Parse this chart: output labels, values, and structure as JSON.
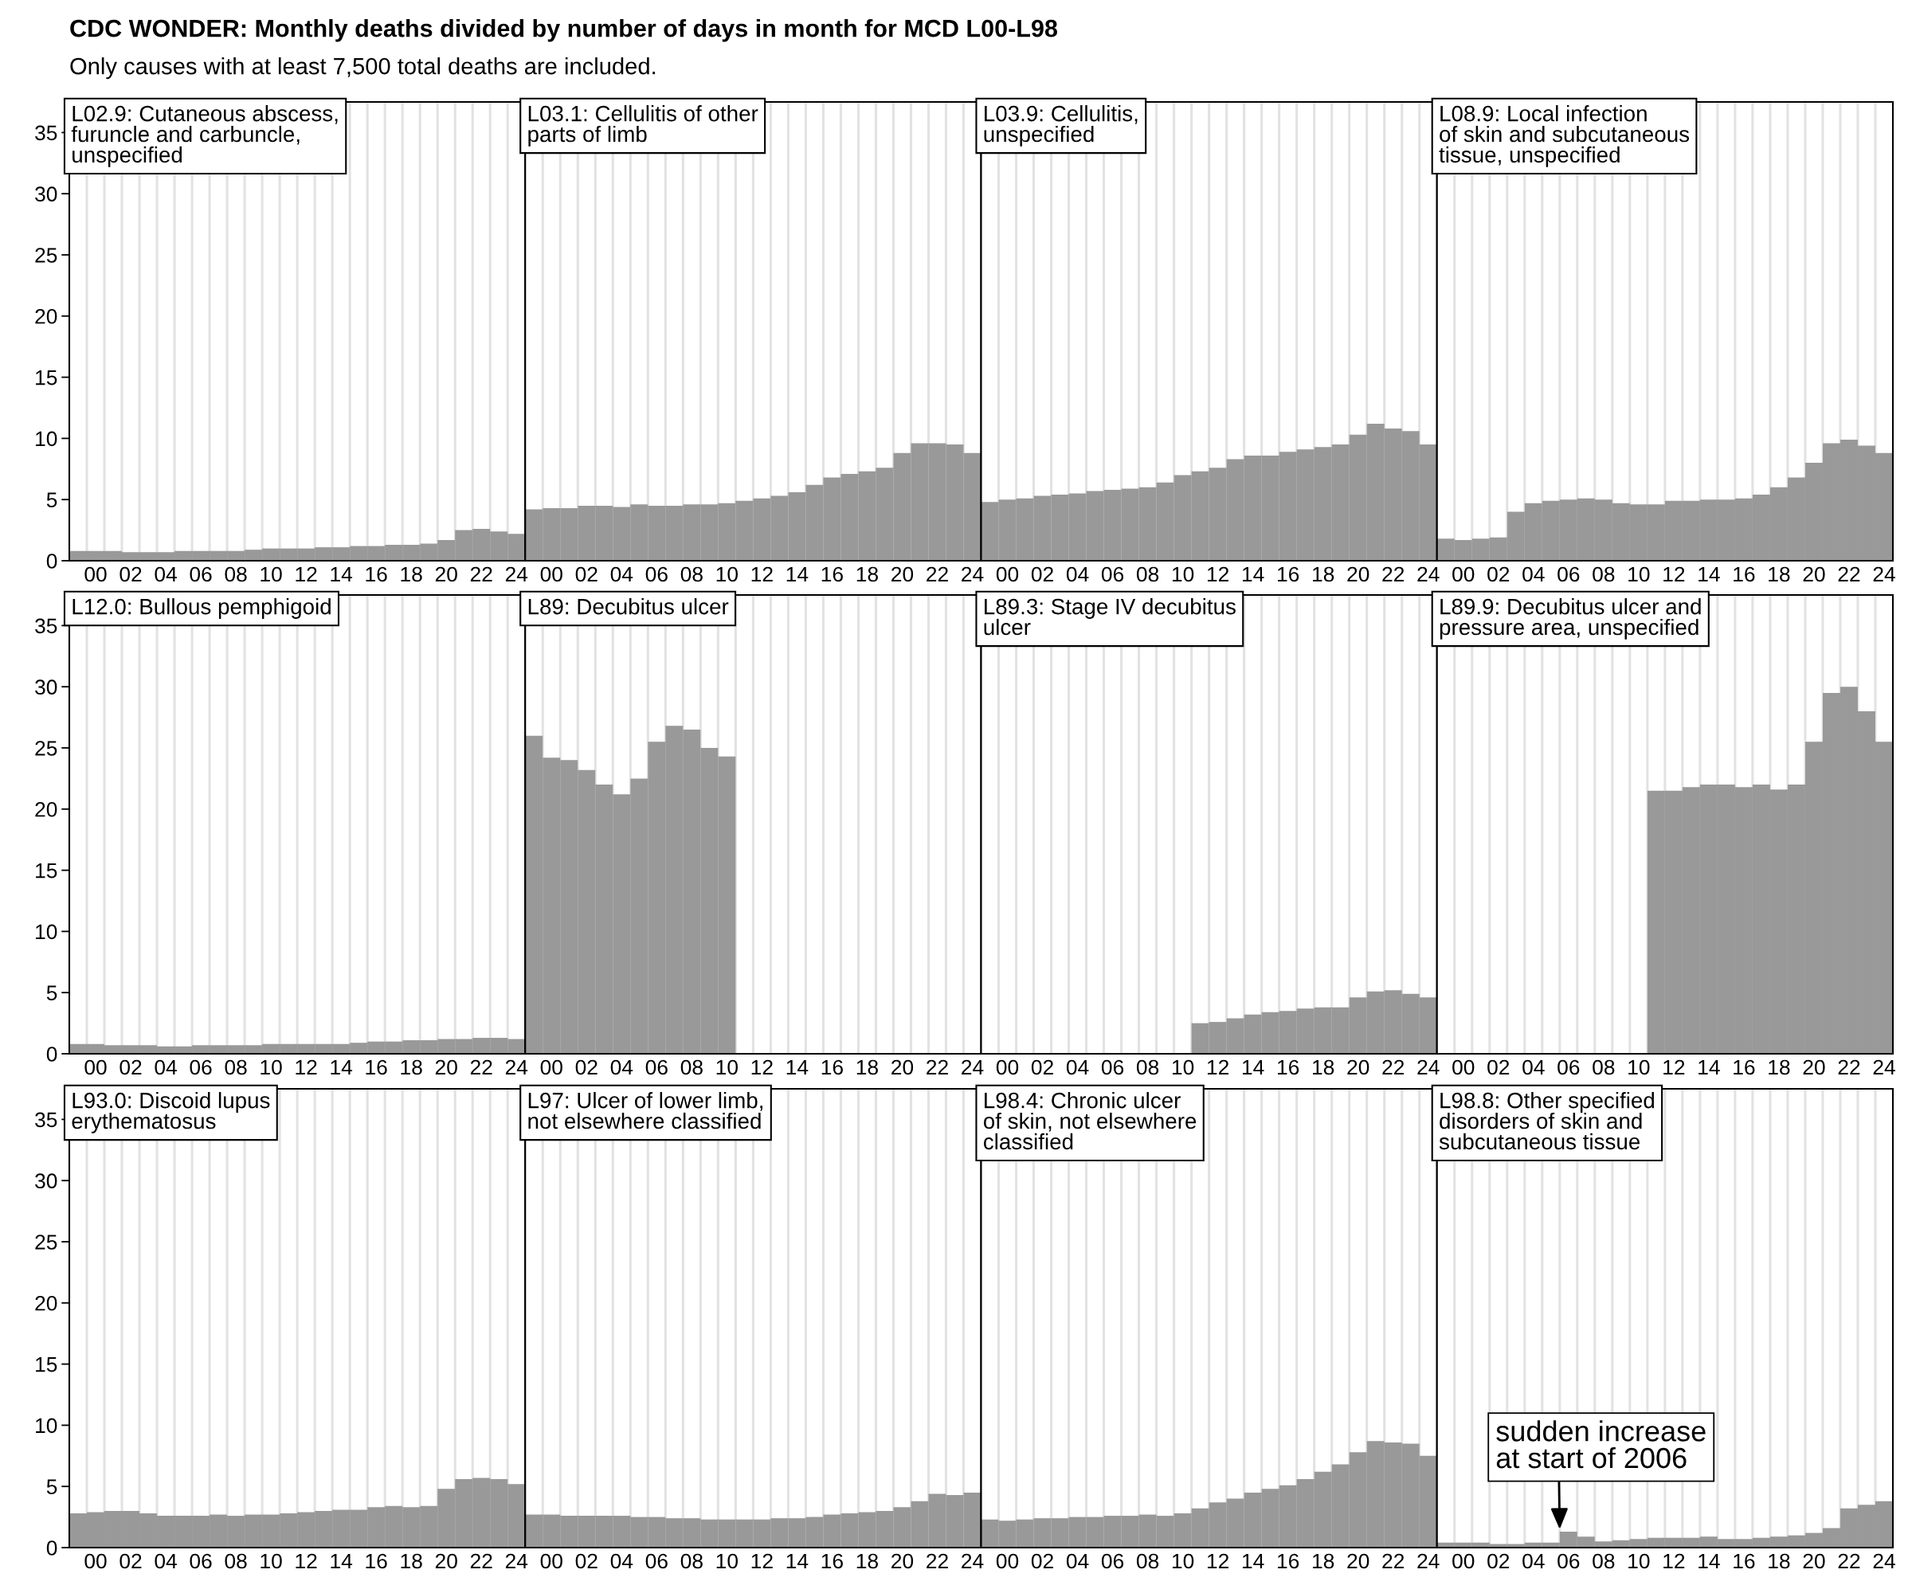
{
  "chart_data": [
    {
      "type": "bar",
      "title": "L02.9: Cutaneous abscess,\nfuruncle and carbuncle,\nunspecified",
      "annotations": [
        "CDC WONDER: Monthly deaths divided by number of days in month for MCD L00-L98",
        "Only causes with at least 7,500 total deaths are included."
      ],
      "color": "#999999",
      "grid": "x",
      "ylim": [
        0,
        37.5
      ],
      "yticks": [
        0,
        5,
        10,
        15,
        20,
        25,
        30,
        35
      ],
      "categories": [
        null,
        "00",
        null,
        "02",
        null,
        "04",
        null,
        "06",
        null,
        "08",
        null,
        "10",
        null,
        "12",
        null,
        "14",
        null,
        "16",
        null,
        "18",
        null,
        "20",
        null,
        "22",
        null,
        "24"
      ],
      "values": [
        0.8,
        0.8,
        0.8,
        0.7,
        0.7,
        0.7,
        0.8,
        0.8,
        0.8,
        0.8,
        0.9,
        1.0,
        1.0,
        1.0,
        1.1,
        1.1,
        1.2,
        1.2,
        1.3,
        1.3,
        1.4,
        1.7,
        2.5,
        2.6,
        2.4,
        2.2
      ]
    },
    {
      "type": "bar",
      "title": "L03.1: Cellulitis of other\nparts of limb",
      "tick_labels": "x",
      "color": "#999999",
      "grid": "x",
      "ylim": [
        0,
        37.5
      ],
      "yticks": [
        0,
        5,
        10,
        15,
        20,
        25,
        30,
        35
      ],
      "categories": [
        null,
        "00",
        null,
        "02",
        null,
        "04",
        null,
        "06",
        null,
        "08",
        null,
        "10",
        null,
        "12",
        null,
        "14",
        null,
        "16",
        null,
        "18",
        null,
        "20",
        null,
        "22",
        null,
        "24"
      ],
      "values": [
        4.2,
        4.3,
        4.3,
        4.5,
        4.5,
        4.4,
        4.6,
        4.5,
        4.5,
        4.6,
        4.6,
        4.7,
        4.9,
        5.1,
        5.3,
        5.6,
        6.2,
        6.8,
        7.1,
        7.3,
        7.6,
        8.8,
        9.6,
        9.6,
        9.5,
        8.8
      ]
    },
    {
      "type": "bar",
      "title": "L03.9: Cellulitis,\nunspecified",
      "tick_labels": "x",
      "color": "#999999",
      "grid": "x",
      "ylim": [
        0,
        37.5
      ],
      "yticks": [
        0,
        5,
        10,
        15,
        20,
        25,
        30,
        35
      ],
      "categories": [
        null,
        "00",
        null,
        "02",
        null,
        "04",
        null,
        "06",
        null,
        "08",
        null,
        "10",
        null,
        "12",
        null,
        "14",
        null,
        "16",
        null,
        "18",
        null,
        "20",
        null,
        "22",
        null,
        "24"
      ],
      "values": [
        4.8,
        5.0,
        5.1,
        5.3,
        5.4,
        5.5,
        5.7,
        5.8,
        5.9,
        6.0,
        6.4,
        7.0,
        7.3,
        7.6,
        8.3,
        8.6,
        8.6,
        8.9,
        9.1,
        9.3,
        9.5,
        10.3,
        11.2,
        10.8,
        10.6,
        9.5
      ]
    },
    {
      "type": "bar",
      "title": "L08.9: Local infection\nof skin and subcutaneous\ntissue, unspecified",
      "tick_labels": "x",
      "color": "#999999",
      "grid": "x",
      "ylim": [
        0,
        37.5
      ],
      "yticks": [
        0,
        5,
        10,
        15,
        20,
        25,
        30,
        35
      ],
      "categories": [
        null,
        "00",
        null,
        "02",
        null,
        "04",
        null,
        "06",
        null,
        "08",
        null,
        "10",
        null,
        "12",
        null,
        "14",
        null,
        "16",
        null,
        "18",
        null,
        "20",
        null,
        "22",
        null,
        "24"
      ],
      "values": [
        1.8,
        1.7,
        1.8,
        1.9,
        4.0,
        4.7,
        4.9,
        5.0,
        5.1,
        5.0,
        4.7,
        4.6,
        4.6,
        4.9,
        4.9,
        5.0,
        5.0,
        5.1,
        5.4,
        6.0,
        6.8,
        8.0,
        9.6,
        9.9,
        9.4,
        8.8
      ]
    },
    {
      "type": "bar",
      "title": "L12.0: Bullous pemphigoid",
      "color": "#999999",
      "grid": "x",
      "ylim": [
        0,
        37.5
      ],
      "yticks": [
        0,
        5,
        10,
        15,
        20,
        25,
        30,
        35
      ],
      "categories": [
        null,
        "00",
        null,
        "02",
        null,
        "04",
        null,
        "06",
        null,
        "08",
        null,
        "10",
        null,
        "12",
        null,
        "14",
        null,
        "16",
        null,
        "18",
        null,
        "20",
        null,
        "22",
        null,
        "24"
      ],
      "values": [
        0.8,
        0.8,
        0.7,
        0.7,
        0.7,
        0.6,
        0.6,
        0.7,
        0.7,
        0.7,
        0.7,
        0.8,
        0.8,
        0.8,
        0.8,
        0.8,
        0.9,
        1.0,
        1.0,
        1.1,
        1.1,
        1.2,
        1.2,
        1.3,
        1.3,
        1.2
      ]
    },
    {
      "type": "bar",
      "title": "L89: Decubitus ulcer",
      "tick_labels": "x",
      "color": "#999999",
      "grid": "x",
      "ylim": [
        0,
        37.5
      ],
      "yticks": [
        0,
        5,
        10,
        15,
        20,
        25,
        30,
        35
      ],
      "categories": [
        null,
        "00",
        null,
        "02",
        null,
        "04",
        null,
        "06",
        null,
        "08",
        null,
        "10",
        null,
        "12",
        null,
        "14",
        null,
        "16",
        null,
        "18",
        null,
        "20",
        null,
        "22",
        null,
        "24"
      ],
      "values": [
        26.0,
        24.2,
        24.0,
        23.2,
        22.0,
        21.2,
        22.5,
        25.5,
        26.8,
        26.5,
        25.0,
        24.3,
        null,
        null,
        null,
        null,
        null,
        null,
        null,
        null,
        null,
        null,
        null,
        null,
        null,
        null
      ]
    },
    {
      "type": "bar",
      "title": "L89.3: Stage IV decubitus\nulcer",
      "tick_labels": "x",
      "color": "#999999",
      "grid": "x",
      "ylim": [
        0,
        37.5
      ],
      "yticks": [
        0,
        5,
        10,
        15,
        20,
        25,
        30,
        35
      ],
      "categories": [
        null,
        "00",
        null,
        "02",
        null,
        "04",
        null,
        "06",
        null,
        "08",
        null,
        "10",
        null,
        "12",
        null,
        "14",
        null,
        "16",
        null,
        "18",
        null,
        "20",
        null,
        "22",
        null,
        "24"
      ],
      "values": [
        null,
        null,
        null,
        null,
        null,
        null,
        null,
        null,
        null,
        null,
        null,
        null,
        2.5,
        2.6,
        2.9,
        3.2,
        3.4,
        3.5,
        3.7,
        3.8,
        3.8,
        4.6,
        5.1,
        5.2,
        4.9,
        4.6
      ]
    },
    {
      "type": "bar",
      "title": "L89.9: Decubitus ulcer and\npressure area, unspecified",
      "tick_labels": "x",
      "color": "#999999",
      "grid": "x",
      "ylim": [
        0,
        37.5
      ],
      "yticks": [
        0,
        5,
        10,
        15,
        20,
        25,
        30,
        35
      ],
      "categories": [
        null,
        "00",
        null,
        "02",
        null,
        "04",
        null,
        "06",
        null,
        "08",
        null,
        "10",
        null,
        "12",
        null,
        "14",
        null,
        "16",
        null,
        "18",
        null,
        "20",
        null,
        "22",
        null,
        "24"
      ],
      "values": [
        null,
        null,
        null,
        null,
        null,
        null,
        null,
        null,
        null,
        null,
        null,
        null,
        21.5,
        21.5,
        21.8,
        22.0,
        22.0,
        21.8,
        22.0,
        21.6,
        22.0,
        25.5,
        29.5,
        30.0,
        28.0,
        25.5
      ]
    },
    {
      "type": "bar",
      "title": "L93.0: Discoid lupus\nerythematosus",
      "color": "#999999",
      "grid": "x",
      "ylim": [
        0,
        37.5
      ],
      "yticks": [
        0,
        5,
        10,
        15,
        20,
        25,
        30,
        35
      ],
      "categories": [
        null,
        "00",
        null,
        "02",
        null,
        "04",
        null,
        "06",
        null,
        "08",
        null,
        "10",
        null,
        "12",
        null,
        "14",
        null,
        "16",
        null,
        "18",
        null,
        "20",
        null,
        "22",
        null,
        "24"
      ],
      "values": [
        2.8,
        2.9,
        3.0,
        3.0,
        2.8,
        2.6,
        2.6,
        2.6,
        2.7,
        2.6,
        2.7,
        2.7,
        2.8,
        2.9,
        3.0,
        3.1,
        3.1,
        3.3,
        3.4,
        3.3,
        3.4,
        4.8,
        5.6,
        5.7,
        5.6,
        5.2
      ]
    },
    {
      "type": "bar",
      "title": "L97: Ulcer of lower limb,\nnot elsewhere classified",
      "tick_labels": "x",
      "color": "#999999",
      "grid": "x",
      "ylim": [
        0,
        37.5
      ],
      "yticks": [
        0,
        5,
        10,
        15,
        20,
        25,
        30,
        35
      ],
      "categories": [
        null,
        "00",
        null,
        "02",
        null,
        "04",
        null,
        "06",
        null,
        "08",
        null,
        "10",
        null,
        "12",
        null,
        "14",
        null,
        "16",
        null,
        "18",
        null,
        "20",
        null,
        "22",
        null,
        "24"
      ],
      "values": [
        2.7,
        2.7,
        2.6,
        2.6,
        2.6,
        2.6,
        2.5,
        2.5,
        2.4,
        2.4,
        2.3,
        2.3,
        2.3,
        2.3,
        2.4,
        2.4,
        2.5,
        2.7,
        2.8,
        2.9,
        3.0,
        3.3,
        3.8,
        4.4,
        4.3,
        4.5
      ]
    },
    {
      "type": "bar",
      "title": "L98.4: Chronic ulcer\nof skin, not elsewhere\nclassified",
      "tick_labels": "x",
      "color": "#999999",
      "grid": "x",
      "ylim": [
        0,
        37.5
      ],
      "yticks": [
        0,
        5,
        10,
        15,
        20,
        25,
        30,
        35
      ],
      "categories": [
        null,
        "00",
        null,
        "02",
        null,
        "04",
        null,
        "06",
        null,
        "08",
        null,
        "10",
        null,
        "12",
        null,
        "14",
        null,
        "16",
        null,
        "18",
        null,
        "20",
        null,
        "22",
        null,
        "24"
      ],
      "values": [
        2.3,
        2.2,
        2.3,
        2.4,
        2.4,
        2.5,
        2.5,
        2.6,
        2.6,
        2.7,
        2.6,
        2.8,
        3.2,
        3.7,
        4.0,
        4.5,
        4.8,
        5.1,
        5.6,
        6.2,
        6.8,
        7.8,
        8.7,
        8.6,
        8.5,
        7.5
      ]
    },
    {
      "type": "bar",
      "title": "L98.8: Other specified\ndisorders of skin and\nsubcutaneous tissue",
      "tick_labels": "x",
      "color": "#999999",
      "grid": "x",
      "ylim": [
        0,
        37.5
      ],
      "yticks": [
        0,
        5,
        10,
        15,
        20,
        25,
        30,
        35
      ],
      "annotations": [
        {
          "text": "sudden increase\nat start of 2006",
          "x": "06",
          "y": 1.5
        }
      ],
      "categories": [
        null,
        "00",
        null,
        "02",
        null,
        "04",
        null,
        "06",
        null,
        "08",
        null,
        "10",
        null,
        "12",
        null,
        "14",
        null,
        "16",
        null,
        "18",
        null,
        "20",
        null,
        "22",
        null,
        "24"
      ],
      "values": [
        0.4,
        0.4,
        0.4,
        0.3,
        0.3,
        0.4,
        0.4,
        1.3,
        0.9,
        0.5,
        0.6,
        0.7,
        0.8,
        0.8,
        0.8,
        0.9,
        0.7,
        0.7,
        0.8,
        0.9,
        1.0,
        1.2,
        1.6,
        3.2,
        3.5,
        3.8
      ]
    }
  ]
}
